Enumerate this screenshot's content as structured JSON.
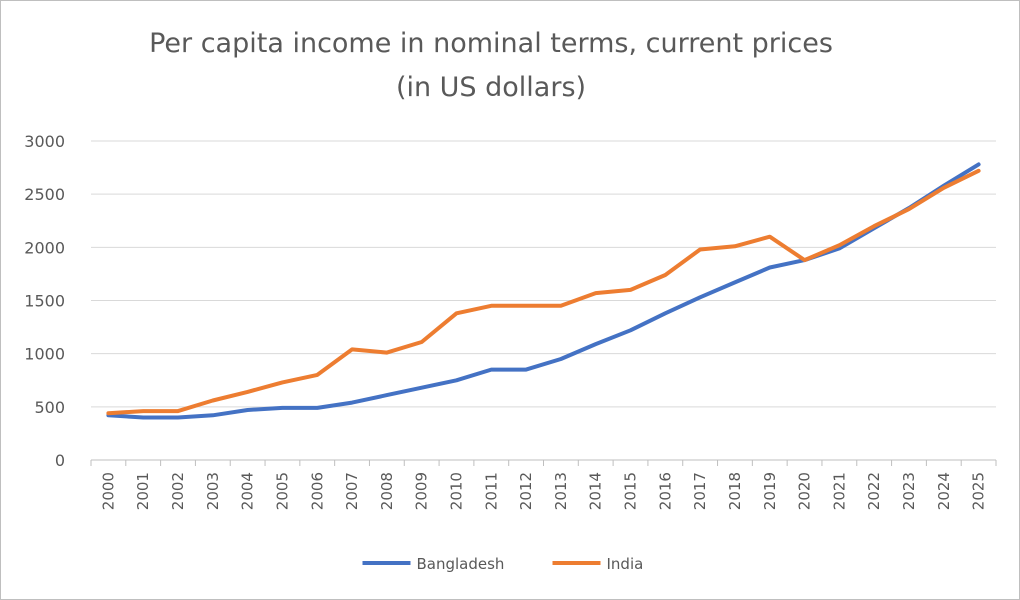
{
  "chart_data": {
    "type": "line",
    "title": "Per capita income  in nominal  terms, current prices",
    "subtitle": "(in US dollars)",
    "xlabel": "",
    "ylabel": "",
    "x": [
      "2000",
      "2001",
      "2002",
      "2003",
      "2004",
      "2005",
      "2006",
      "2007",
      "2008",
      "2009",
      "2010",
      "2011",
      "2012",
      "2013",
      "2014",
      "2015",
      "2016",
      "2017",
      "2018",
      "2019",
      "2020",
      "2021",
      "2022",
      "2023",
      "2024",
      "2025"
    ],
    "ylim": [
      0,
      3000
    ],
    "yticks": [
      "0",
      "500",
      "1000",
      "1500",
      "2000",
      "2500",
      "3000"
    ],
    "grid": true,
    "legend_position": "bottom",
    "series": [
      {
        "name": "Bangladesh",
        "color": "#4472c4",
        "values": [
          420,
          400,
          400,
          420,
          470,
          490,
          490,
          540,
          610,
          680,
          750,
          850,
          850,
          950,
          1090,
          1220,
          1380,
          1530,
          1670,
          1810,
          1880,
          1990,
          2180,
          2370,
          2580,
          2780
        ]
      },
      {
        "name": "India",
        "color": "#ed7d31",
        "values": [
          440,
          460,
          460,
          560,
          640,
          730,
          800,
          1040,
          1010,
          1110,
          1380,
          1450,
          1450,
          1450,
          1570,
          1600,
          1740,
          1980,
          2010,
          2100,
          1880,
          2020,
          2200,
          2360,
          2560,
          2720
        ]
      }
    ]
  }
}
